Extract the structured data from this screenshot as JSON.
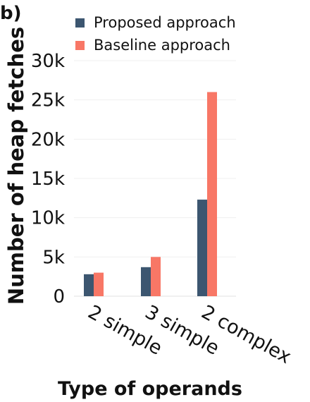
{
  "panel_label": "b)",
  "chart_data": {
    "type": "bar",
    "categories": [
      "2 simple",
      "3 simple",
      "2 complex"
    ],
    "series": [
      {
        "name": "Proposed approach",
        "values": [
          2800,
          3700,
          12300
        ],
        "color": "#3c5670"
      },
      {
        "name": "Baseline approach",
        "values": [
          3000,
          5000,
          26000
        ],
        "color": "#f87766"
      }
    ],
    "xlabel": "Type of operands",
    "ylabel": "Number of heap fetches",
    "ylim": [
      0,
      30000
    ],
    "yticks": [
      0,
      5000,
      10000,
      15000,
      20000,
      25000,
      30000
    ],
    "ytick_labels": [
      "0",
      "5k",
      "10k",
      "15k",
      "20k",
      "25k",
      "30k"
    ],
    "grid": true,
    "legend_position": "top"
  }
}
